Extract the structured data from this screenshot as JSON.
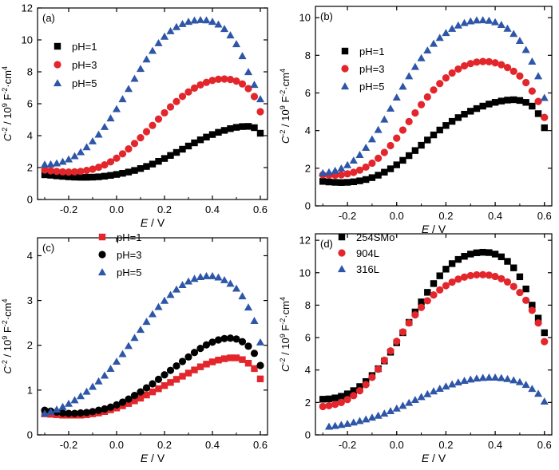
{
  "chart_data": [
    {
      "type": "scatter",
      "panel_label": "(a)",
      "xlabel_var": "E",
      "xlabel_unit": " / V",
      "ylabel": "C^{-2} / 10^9 F^{-2}·cm^4",
      "xlim": [
        -0.33,
        0.63
      ],
      "ylim": [
        0,
        12
      ],
      "xticks": [
        -0.2,
        0.0,
        0.2,
        0.4,
        0.6
      ],
      "xtick_labels": [
        "-0.2",
        "0.0",
        "0.2",
        "0.4",
        "0.6"
      ],
      "yticks": [
        0,
        2,
        4,
        6,
        8,
        10,
        12
      ],
      "ytick_labels": [
        "0",
        "2",
        "4",
        "6",
        "8",
        "10",
        "12"
      ],
      "grid": false,
      "legend_position": "upper-left",
      "x": [
        -0.3,
        -0.275,
        -0.25,
        -0.225,
        -0.2,
        -0.175,
        -0.15,
        -0.125,
        -0.1,
        -0.075,
        -0.05,
        -0.025,
        0.0,
        0.025,
        0.05,
        0.075,
        0.1,
        0.125,
        0.15,
        0.175,
        0.2,
        0.225,
        0.25,
        0.275,
        0.3,
        0.325,
        0.35,
        0.375,
        0.4,
        0.425,
        0.45,
        0.475,
        0.5,
        0.525,
        0.55,
        0.575,
        0.6
      ],
      "series": [
        {
          "name": "pH=1",
          "marker": "square",
          "color": "#000000",
          "values": [
            1.55,
            1.52,
            1.48,
            1.45,
            1.42,
            1.4,
            1.39,
            1.39,
            1.4,
            1.42,
            1.46,
            1.51,
            1.57,
            1.64,
            1.72,
            1.82,
            1.94,
            2.07,
            2.22,
            2.39,
            2.57,
            2.76,
            2.95,
            3.15,
            3.35,
            3.55,
            3.74,
            3.91,
            4.07,
            4.21,
            4.33,
            4.44,
            4.52,
            4.57,
            4.58,
            4.5,
            4.15
          ]
        },
        {
          "name": "pH=3",
          "marker": "circle",
          "color": "#e3262b",
          "values": [
            1.85,
            1.8,
            1.76,
            1.73,
            1.72,
            1.73,
            1.76,
            1.82,
            1.9,
            2.02,
            2.17,
            2.36,
            2.59,
            2.86,
            3.17,
            3.51,
            3.87,
            4.25,
            4.64,
            5.04,
            5.43,
            5.8,
            6.14,
            6.46,
            6.74,
            6.98,
            7.18,
            7.34,
            7.46,
            7.53,
            7.55,
            7.52,
            7.42,
            7.24,
            6.95,
            6.45,
            5.5
          ]
        },
        {
          "name": "pH=5",
          "marker": "triangle",
          "color": "#2e56a8",
          "values": [
            2.2,
            2.22,
            2.28,
            2.38,
            2.53,
            2.73,
            2.98,
            3.29,
            3.66,
            4.08,
            4.56,
            5.1,
            5.68,
            6.3,
            6.94,
            7.58,
            8.2,
            8.79,
            9.33,
            9.81,
            10.22,
            10.56,
            10.82,
            11.01,
            11.15,
            11.23,
            11.26,
            11.24,
            11.15,
            10.98,
            10.7,
            10.3,
            9.75,
            9.0,
            8.0,
            7.2,
            6.3
          ]
        }
      ]
    },
    {
      "type": "scatter",
      "panel_label": "(b)",
      "xlabel_var": "E",
      "xlabel_unit": " / V",
      "ylabel": "C^{-2} / 10^9 F^{-2}·cm^4",
      "xlim": [
        -0.33,
        0.63
      ],
      "ylim": [
        0,
        10.6
      ],
      "xticks": [
        -0.2,
        0.0,
        0.2,
        0.4,
        0.6
      ],
      "xtick_labels": [
        "-0.2",
        "0.0",
        "0.2",
        "0.4",
        "0.6"
      ],
      "yticks": [
        0,
        2,
        4,
        6,
        8,
        10
      ],
      "ytick_labels": [
        "0",
        "2",
        "4",
        "6",
        "8",
        "10"
      ],
      "grid": false,
      "legend_position": "upper-left",
      "x": [
        -0.3,
        -0.275,
        -0.25,
        -0.225,
        -0.2,
        -0.175,
        -0.15,
        -0.125,
        -0.1,
        -0.075,
        -0.05,
        -0.025,
        0.0,
        0.025,
        0.05,
        0.075,
        0.1,
        0.125,
        0.15,
        0.175,
        0.2,
        0.225,
        0.25,
        0.275,
        0.3,
        0.325,
        0.35,
        0.375,
        0.4,
        0.425,
        0.45,
        0.475,
        0.5,
        0.525,
        0.55,
        0.575,
        0.6
      ],
      "series": [
        {
          "name": "pH=1",
          "marker": "square",
          "color": "#000000",
          "values": [
            1.3,
            1.27,
            1.25,
            1.24,
            1.25,
            1.28,
            1.33,
            1.4,
            1.5,
            1.63,
            1.79,
            1.97,
            2.18,
            2.42,
            2.67,
            2.94,
            3.22,
            3.5,
            3.77,
            4.03,
            4.27,
            4.49,
            4.69,
            4.87,
            5.03,
            5.17,
            5.3,
            5.41,
            5.5,
            5.57,
            5.62,
            5.64,
            5.6,
            5.5,
            5.3,
            4.9,
            4.15
          ]
        },
        {
          "name": "pH=3",
          "marker": "circle",
          "color": "#e3262b",
          "values": [
            1.65,
            1.63,
            1.63,
            1.65,
            1.7,
            1.78,
            1.9,
            2.06,
            2.27,
            2.53,
            2.84,
            3.2,
            3.6,
            4.03,
            4.48,
            4.94,
            5.38,
            5.79,
            6.16,
            6.5,
            6.8,
            7.06,
            7.27,
            7.44,
            7.56,
            7.64,
            7.67,
            7.66,
            7.6,
            7.5,
            7.35,
            7.15,
            6.9,
            6.55,
            6.1,
            5.55,
            4.7
          ]
        },
        {
          "name": "pH=5",
          "marker": "triangle",
          "color": "#2e56a8",
          "values": [
            1.75,
            1.8,
            1.88,
            2.0,
            2.18,
            2.42,
            2.72,
            3.1,
            3.55,
            4.05,
            4.6,
            5.18,
            5.77,
            6.35,
            6.9,
            7.4,
            7.86,
            8.27,
            8.63,
            8.94,
            9.2,
            9.42,
            9.6,
            9.73,
            9.82,
            9.87,
            9.88,
            9.85,
            9.77,
            9.63,
            9.43,
            9.15,
            8.78,
            8.3,
            7.68,
            6.9,
            5.75
          ]
        }
      ]
    },
    {
      "type": "scatter",
      "panel_label": "(c)",
      "xlabel_var": "E",
      "xlabel_unit": " / V",
      "ylabel": "C^{-2} / 10^9 F^{-2}·cm^4",
      "xlim": [
        -0.33,
        0.63
      ],
      "ylim": [
        0,
        4.4
      ],
      "xticks": [
        -0.2,
        0.0,
        0.2,
        0.4,
        0.6
      ],
      "xtick_labels": [
        "-0.2",
        "0.0",
        "0.2",
        "0.4",
        "0.6"
      ],
      "yticks": [
        0,
        1,
        2,
        3,
        4
      ],
      "ytick_labels": [
        "0",
        "1",
        "2",
        "3",
        "4"
      ],
      "grid": false,
      "legend_position": "upper-center",
      "x": [
        -0.3,
        -0.275,
        -0.25,
        -0.225,
        -0.2,
        -0.175,
        -0.15,
        -0.125,
        -0.1,
        -0.075,
        -0.05,
        -0.025,
        0.0,
        0.025,
        0.05,
        0.075,
        0.1,
        0.125,
        0.15,
        0.175,
        0.2,
        0.225,
        0.25,
        0.275,
        0.3,
        0.325,
        0.35,
        0.375,
        0.4,
        0.425,
        0.45,
        0.475,
        0.5,
        0.525,
        0.55,
        0.575,
        0.6
      ],
      "series": [
        {
          "name": "pH=1",
          "marker": "square",
          "color": "#e3262b",
          "values": [
            0.47,
            0.46,
            0.45,
            0.44,
            0.44,
            0.44,
            0.44,
            0.45,
            0.47,
            0.49,
            0.52,
            0.56,
            0.6,
            0.65,
            0.7,
            0.76,
            0.82,
            0.89,
            0.96,
            1.03,
            1.1,
            1.17,
            1.24,
            1.31,
            1.38,
            1.45,
            1.52,
            1.58,
            1.63,
            1.67,
            1.7,
            1.72,
            1.72,
            1.68,
            1.6,
            1.48,
            1.25
          ]
        },
        {
          "name": "pH=3",
          "marker": "circle",
          "color": "#000000",
          "values": [
            0.55,
            0.53,
            0.51,
            0.49,
            0.48,
            0.48,
            0.49,
            0.5,
            0.52,
            0.55,
            0.58,
            0.62,
            0.67,
            0.73,
            0.8,
            0.88,
            0.96,
            1.05,
            1.14,
            1.24,
            1.34,
            1.44,
            1.54,
            1.64,
            1.74,
            1.84,
            1.93,
            2.01,
            2.07,
            2.12,
            2.15,
            2.16,
            2.14,
            2.08,
            1.98,
            1.82,
            1.55
          ]
        },
        {
          "name": "pH=5",
          "marker": "triangle",
          "color": "#2e56a8",
          "values": [
            0.48,
            0.52,
            0.57,
            0.63,
            0.7,
            0.78,
            0.87,
            0.97,
            1.08,
            1.2,
            1.33,
            1.48,
            1.64,
            1.81,
            1.99,
            2.17,
            2.35,
            2.53,
            2.7,
            2.86,
            3.0,
            3.13,
            3.25,
            3.35,
            3.43,
            3.49,
            3.53,
            3.55,
            3.55,
            3.52,
            3.46,
            3.38,
            3.27,
            3.1,
            2.85,
            2.55,
            2.07
          ]
        }
      ]
    },
    {
      "type": "scatter",
      "panel_label": "(d)",
      "xlabel_var": "E",
      "xlabel_unit": " / V",
      "ylabel": "C^{-2} / 10^9 F^{-2}·cm^4",
      "xlim": [
        -0.33,
        0.63
      ],
      "ylim": [
        0,
        12.4
      ],
      "xticks": [
        -0.2,
        0.0,
        0.2,
        0.4,
        0.6
      ],
      "xtick_labels": [
        "-0.2",
        "0.0",
        "0.2",
        "0.4",
        "0.6"
      ],
      "yticks": [
        0,
        2,
        4,
        6,
        8,
        10,
        12
      ],
      "ytick_labels": [
        "0",
        "2",
        "4",
        "6",
        "8",
        "10",
        "12"
      ],
      "grid": false,
      "legend_position": "upper-left",
      "x": [
        -0.3,
        -0.275,
        -0.25,
        -0.225,
        -0.2,
        -0.175,
        -0.15,
        -0.125,
        -0.1,
        -0.075,
        -0.05,
        -0.025,
        0.0,
        0.025,
        0.05,
        0.075,
        0.1,
        0.125,
        0.15,
        0.175,
        0.2,
        0.225,
        0.25,
        0.275,
        0.3,
        0.325,
        0.35,
        0.375,
        0.4,
        0.425,
        0.45,
        0.475,
        0.5,
        0.525,
        0.55,
        0.575,
        0.6
      ],
      "series": [
        {
          "name": "254SMo",
          "marker": "square",
          "color": "#000000",
          "values": [
            2.2,
            2.22,
            2.28,
            2.38,
            2.53,
            2.73,
            2.98,
            3.29,
            3.66,
            4.08,
            4.56,
            5.1,
            5.68,
            6.3,
            6.94,
            7.58,
            8.2,
            8.79,
            9.33,
            9.81,
            10.22,
            10.56,
            10.82,
            11.01,
            11.15,
            11.23,
            11.26,
            11.24,
            11.15,
            10.98,
            10.7,
            10.3,
            9.75,
            9.0,
            8.0,
            7.2,
            6.3
          ]
        },
        {
          "name": "904L",
          "marker": "circle",
          "color": "#e3262b",
          "values": [
            1.75,
            1.8,
            1.88,
            2.0,
            2.18,
            2.42,
            2.72,
            3.1,
            3.55,
            4.05,
            4.6,
            5.18,
            5.77,
            6.35,
            6.9,
            7.4,
            7.86,
            8.27,
            8.63,
            8.94,
            9.2,
            9.42,
            9.6,
            9.73,
            9.82,
            9.87,
            9.88,
            9.85,
            9.77,
            9.63,
            9.43,
            9.15,
            8.78,
            8.3,
            7.68,
            6.9,
            5.75
          ]
        },
        {
          "name": "316L",
          "marker": "triangle",
          "color": "#2e56a8",
          "values": [
            null,
            0.52,
            0.57,
            0.63,
            0.7,
            0.78,
            0.87,
            0.97,
            1.08,
            1.2,
            1.33,
            1.48,
            1.64,
            1.81,
            1.99,
            2.17,
            2.35,
            2.53,
            2.7,
            2.86,
            3.0,
            3.13,
            3.25,
            3.35,
            3.43,
            3.49,
            3.53,
            3.55,
            3.55,
            3.52,
            3.46,
            3.38,
            3.27,
            3.1,
            2.85,
            2.55,
            2.07
          ]
        }
      ]
    }
  ]
}
